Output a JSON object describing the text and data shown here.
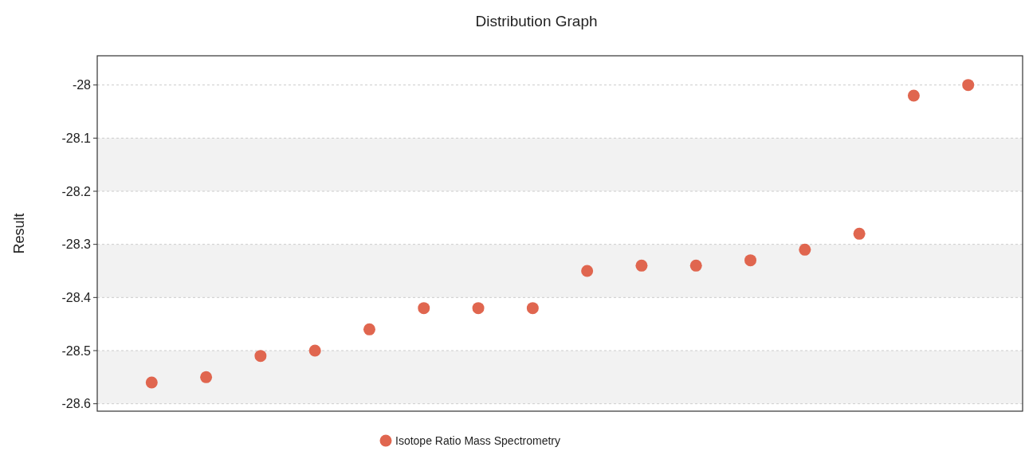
{
  "chart_data": {
    "type": "scatter",
    "title": "Distribution Graph",
    "ylabel": "Result",
    "categories": [
      null,
      null,
      null,
      null,
      null,
      null,
      null,
      null,
      null,
      null,
      null,
      null,
      null,
      null,
      null,
      null
    ],
    "series": [
      {
        "name": "Isotope Ratio Mass Spectrometry",
        "color": "#e0664f",
        "values": [
          -28.56,
          -28.55,
          -28.51,
          -28.5,
          -28.46,
          -28.42,
          -28.42,
          -28.42,
          -28.35,
          -28.34,
          -28.34,
          -28.33,
          -28.31,
          -28.28,
          -28.02,
          -28.0
        ]
      }
    ],
    "ylim": [
      -28.614,
      -27.945
    ],
    "yticks": [
      -28.6,
      -28.5,
      -28.4,
      -28.3,
      -28.2,
      -28.1,
      -28
    ],
    "grid": "y",
    "legend": "bottom",
    "marker": "circle"
  }
}
